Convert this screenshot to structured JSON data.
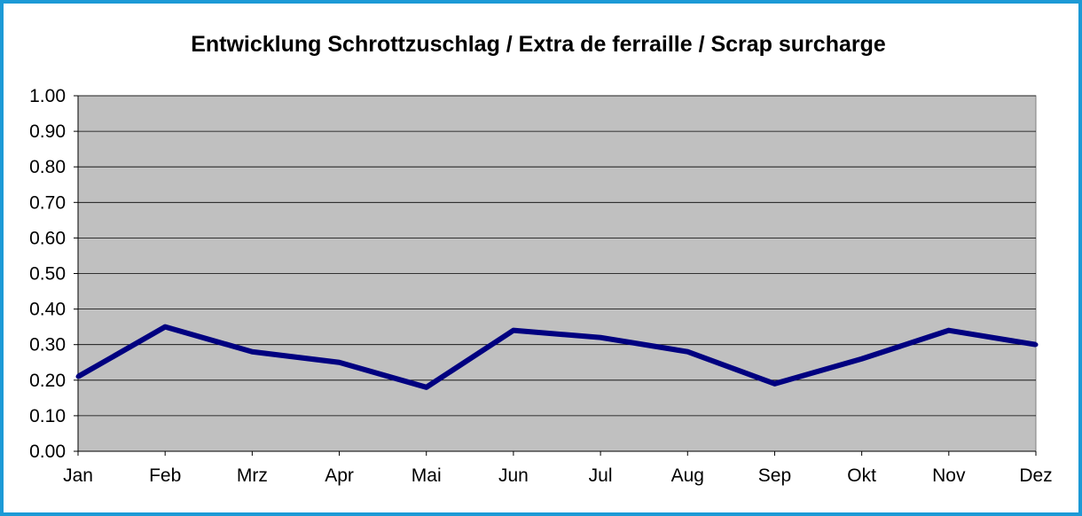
{
  "chart_data": {
    "type": "line",
    "title": "Entwicklung Schrottzuschlag / Extra de ferraille / Scrap surcharge",
    "xlabel": "",
    "ylabel": "",
    "categories": [
      "Jan",
      "Feb",
      "Mrz",
      "Apr",
      "Mai",
      "Jun",
      "Jul",
      "Aug",
      "Sep",
      "Okt",
      "Nov",
      "Dez"
    ],
    "series": [
      {
        "values": [
          0.21,
          0.35,
          0.28,
          0.25,
          0.18,
          0.34,
          0.32,
          0.28,
          0.19,
          0.26,
          0.34,
          0.3
        ]
      }
    ],
    "ylim": [
      0,
      1
    ],
    "yticks": [
      "0.00",
      "0.10",
      "0.20",
      "0.30",
      "0.40",
      "0.50",
      "0.60",
      "0.70",
      "0.80",
      "0.90",
      "1.00"
    ],
    "grid": true,
    "legend": "none",
    "colors": {
      "line": "#000080",
      "plot_background": "#c0c0c0",
      "gridline": "#000000",
      "frame_border": "#1c9ad6"
    }
  }
}
